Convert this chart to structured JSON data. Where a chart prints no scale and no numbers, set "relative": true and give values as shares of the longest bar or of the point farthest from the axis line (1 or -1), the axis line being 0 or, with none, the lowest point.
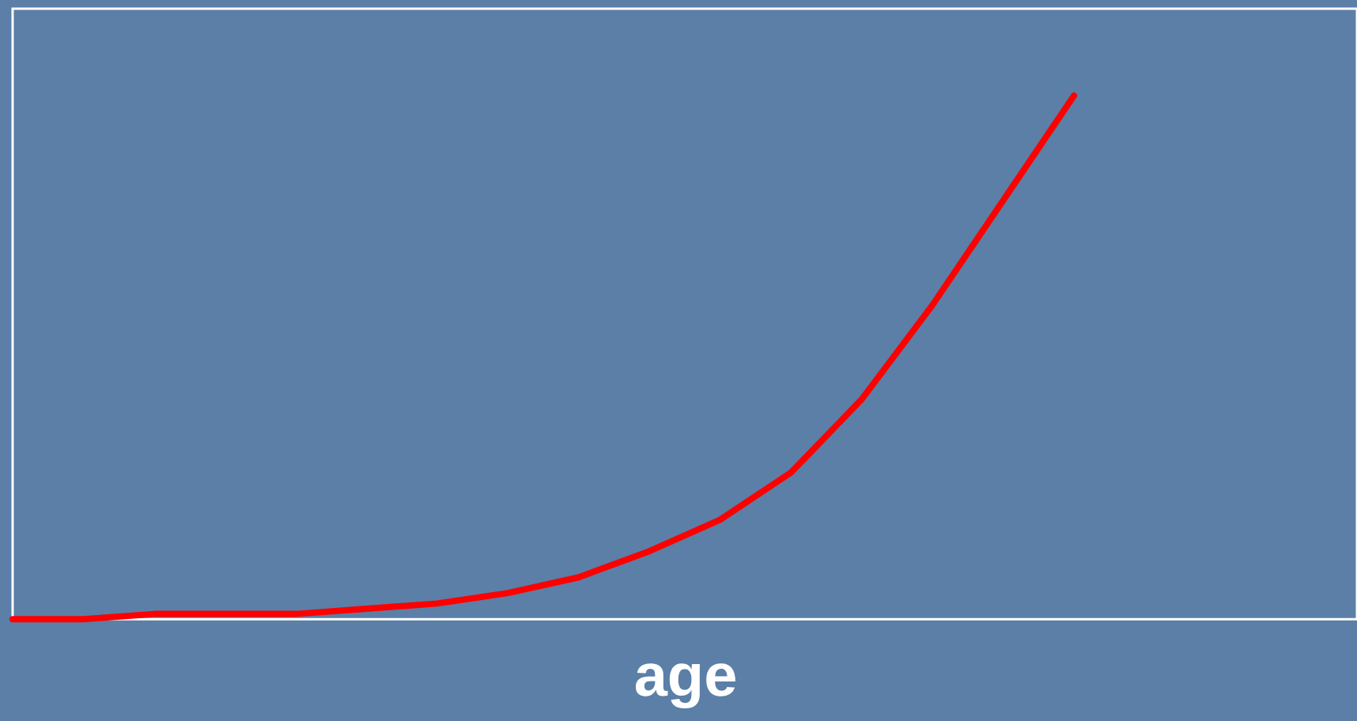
{
  "chart_data": {
    "type": "line",
    "xlabel": "age",
    "relative": true,
    "grid": false,
    "marker": "none",
    "line_style": "solid",
    "categories": [
      null,
      null,
      null,
      null,
      null,
      null,
      null,
      null,
      null,
      null,
      null,
      null,
      null,
      null,
      null,
      null,
      null,
      null,
      null,
      null
    ],
    "series": [
      {
        "color": "#ff0000",
        "values": [
          0,
          0,
          0.01,
          0.01,
          0.01,
          0.02,
          0.03,
          0.05,
          0.08,
          0.13,
          0.19,
          0.28,
          0.42,
          0.6,
          0.8,
          1,
          null,
          null,
          null,
          null
        ]
      }
    ]
  }
}
